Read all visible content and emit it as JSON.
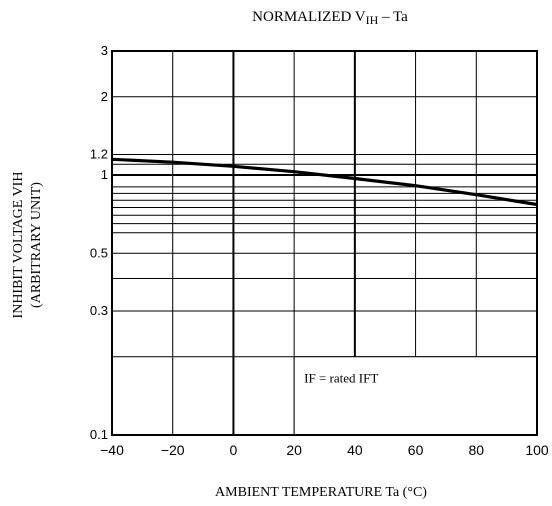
{
  "chart_data": {
    "type": "line",
    "title": "NORMALIZED V",
    "title_sub": "IH",
    "title_tail": " – Ta",
    "xlabel": "AMBIENT TEMPERATURE  Ta  (°C)",
    "ylabel_line1": "INHIBIT VOLTAGE  VIH",
    "ylabel_line2": "(ARBITRARY UNIT)",
    "x_scale": "linear",
    "y_scale": "log",
    "xlim": [
      -40,
      100
    ],
    "ylim": [
      0.1,
      3
    ],
    "x_ticks": [
      -40,
      -20,
      0,
      20,
      40,
      60,
      80,
      100
    ],
    "x_tick_labels": [
      "−40",
      "−20",
      "0",
      "20",
      "40",
      "60",
      "80",
      "100"
    ],
    "y_ticks": [
      0.1,
      0.3,
      0.5,
      1,
      1.2,
      2,
      3
    ],
    "y_tick_labels": [
      "0.1",
      "0.3",
      "0.5",
      "1",
      "1.2",
      "2",
      "3"
    ],
    "y_gridlines": [
      0.2,
      0.3,
      0.4,
      0.5,
      0.6,
      0.65,
      0.7,
      0.75,
      0.8,
      0.85,
      0.9,
      1,
      1.1,
      1.2,
      2
    ],
    "grid": true,
    "annotation": "IF = rated IFT",
    "series": [
      {
        "x": [
          -40,
          -20,
          0,
          20,
          40,
          60,
          80,
          100
        ],
        "y": [
          1.15,
          1.12,
          1.08,
          1.03,
          0.97,
          0.91,
          0.84,
          0.77
        ]
      }
    ]
  }
}
